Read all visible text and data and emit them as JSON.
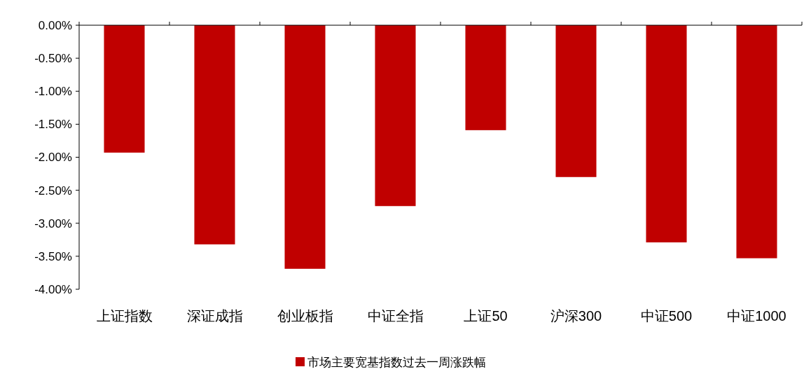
{
  "chart_data": {
    "type": "bar",
    "categories": [
      "上证指数",
      "深证成指",
      "创业板指",
      "中证全指",
      "上证50",
      "沪深300",
      "中证500",
      "中证1000"
    ],
    "series": [
      {
        "name": "市场主要宽基指数过去一周涨跌幅",
        "color": "#c00000",
        "values": [
          -1.93,
          -3.32,
          -3.69,
          -2.74,
          -1.59,
          -2.3,
          -3.29,
          -3.53
        ]
      }
    ],
    "ylim": [
      -4,
      0
    ],
    "yticks": [
      {
        "value": 0,
        "label": "0.00%"
      },
      {
        "value": -0.5,
        "label": "-0.50%"
      },
      {
        "value": -1,
        "label": "-1.00%"
      },
      {
        "value": -1.5,
        "label": "-1.50%"
      },
      {
        "value": -2,
        "label": "-2.00%"
      },
      {
        "value": -2.5,
        "label": "-2.50%"
      },
      {
        "value": -3,
        "label": "-3.00%"
      },
      {
        "value": -3.5,
        "label": "-3.50%"
      },
      {
        "value": -4,
        "label": "-4.00%"
      }
    ],
    "grid": false,
    "legend": "bottom"
  }
}
